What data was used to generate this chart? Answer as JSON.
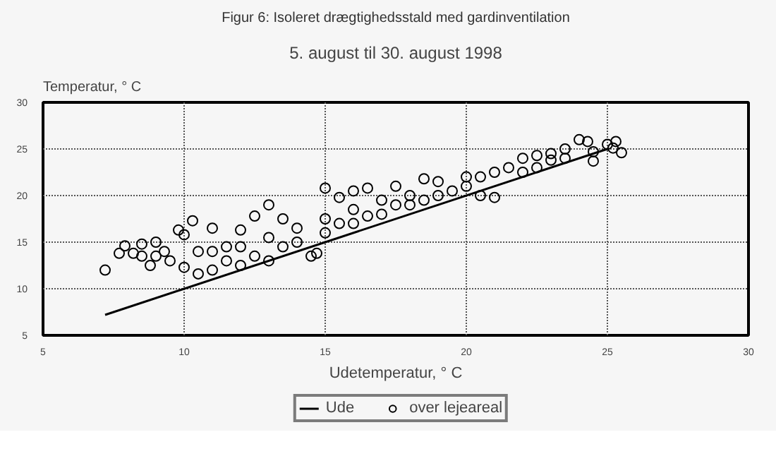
{
  "chart_data": {
    "type": "scatter",
    "title": "Figur 6: Isoleret drægtighedsstald med gardinventilation",
    "subtitle": "5. august til 30. august 1998",
    "xlabel": "Udetemperatur, ° C",
    "ylabel": "Temperatur, ° C",
    "xlim": [
      5,
      30
    ],
    "ylim": [
      5,
      30
    ],
    "xticks": [
      5,
      10,
      15,
      20,
      25,
      30
    ],
    "yticks": [
      5,
      10,
      15,
      20,
      25,
      30
    ],
    "grid": true,
    "legend": "bottom",
    "series": [
      {
        "name": "Ude",
        "type": "line",
        "color": "#000000",
        "x": [
          7.2,
          25.0
        ],
        "values": [
          7.2,
          25.0
        ]
      },
      {
        "name": "over lejeareal",
        "marker": "circle",
        "color": "#000000",
        "x": [
          7.2,
          7.7,
          7.9,
          8.2,
          8.5,
          8.8,
          9.0,
          9.3,
          9.5,
          9.8,
          10.0,
          10.0,
          10.3,
          10.5,
          11.0,
          11.0,
          11.5,
          12.0,
          12.5,
          13.0,
          13.0,
          13.5,
          14.0,
          14.5,
          14.7,
          15.0,
          15.0,
          15.5,
          16.0,
          16.5,
          16.0,
          17.0,
          17.5,
          17.5,
          18.0,
          18.5,
          18.5,
          19.0,
          19.0,
          20.0,
          20.0,
          20.5,
          21.0,
          21.0,
          21.5,
          22.0,
          22.0,
          22.5,
          23.0,
          23.5,
          23.5,
          24.0,
          24.3,
          24.5,
          24.5,
          25.0,
          25.3,
          25.5,
          25.2,
          11.0,
          11.5,
          12.0,
          12.5,
          13.0,
          13.5,
          14.0,
          15.0,
          15.5,
          16.0,
          16.5,
          17.0,
          18.0,
          19.5,
          20.5,
          22.5,
          23.0,
          12.0,
          10.5,
          9.0,
          8.5
        ],
        "values": [
          12.0,
          13.8,
          14.6,
          13.8,
          13.5,
          12.5,
          15.0,
          14.0,
          13.0,
          16.3,
          12.3,
          15.8,
          17.3,
          11.6,
          16.5,
          12.0,
          14.5,
          16.3,
          17.8,
          19.0,
          13.0,
          17.5,
          15.0,
          13.5,
          13.8,
          20.8,
          16.0,
          19.8,
          20.5,
          20.8,
          17.0,
          18.0,
          21.0,
          19.0,
          20.0,
          21.8,
          19.5,
          20.0,
          21.5,
          22.0,
          21.0,
          20.0,
          19.8,
          22.5,
          23.0,
          24.0,
          22.5,
          24.3,
          23.8,
          25.0,
          24.0,
          26.0,
          25.8,
          24.7,
          23.7,
          25.5,
          25.8,
          24.6,
          25.1,
          14.0,
          13.0,
          14.5,
          13.5,
          15.5,
          14.5,
          16.5,
          17.5,
          17.0,
          18.5,
          17.8,
          19.5,
          19.0,
          20.5,
          22.0,
          23.0,
          24.5,
          12.5,
          14.0,
          13.5,
          14.8
        ]
      }
    ]
  }
}
